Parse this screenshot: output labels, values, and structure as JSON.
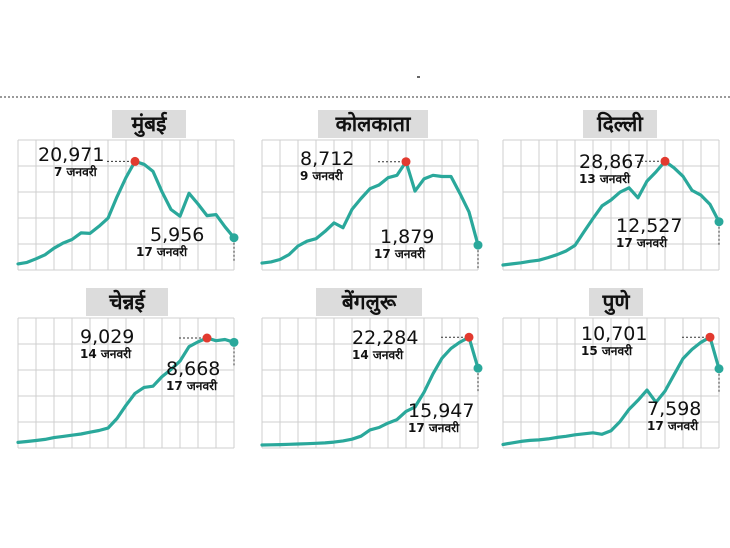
{
  "colors": {
    "line": "#2aa89b",
    "peak_marker": "#e23a2f",
    "end_marker": "#2aa89b",
    "grid": "#cfcfcf",
    "title_bg": "#dcdcdc"
  },
  "chart_data": [
    {
      "type": "line",
      "title": "मुंबई",
      "ylim": [
        0,
        24000
      ],
      "values": [
        800,
        1100,
        1800,
        2600,
        3900,
        4900,
        5600,
        6900,
        6800,
        8200,
        9800,
        14000,
        17800,
        20971,
        20400,
        19000,
        15000,
        11500,
        10200,
        14700,
        12600,
        10300,
        10500,
        8100,
        5956
      ],
      "peak": {
        "value": "20,971",
        "date": "7 जनवरी"
      },
      "last": {
        "value": "5,956",
        "date": "17 जनवरी"
      }
    },
    {
      "type": "line",
      "title": "कोलकाता",
      "ylim": [
        0,
        10000
      ],
      "values": [
        400,
        500,
        700,
        1100,
        1800,
        2200,
        2400,
        3000,
        3700,
        3300,
        4800,
        5700,
        6500,
        6800,
        7400,
        7600,
        8712,
        6300,
        7300,
        7600,
        7500,
        7500,
        6100,
        4600,
        1879
      ],
      "peak": {
        "value": "8,712",
        "date": "9 जनवरी"
      },
      "last": {
        "value": "1,879",
        "date": "17 जनवरी"
      }
    },
    {
      "type": "line",
      "title": "दिल्ली",
      "ylim": [
        0,
        33000
      ],
      "values": [
        800,
        1100,
        1400,
        1800,
        2100,
        2800,
        3600,
        4600,
        6100,
        9800,
        13400,
        16800,
        18400,
        20500,
        21700,
        19000,
        23500,
        26000,
        28867,
        27100,
        24800,
        21000,
        19700,
        17200,
        12527
      ],
      "peak": {
        "value": "28,867",
        "date": "13 जनवरी"
      },
      "last": {
        "value": "12,527",
        "date": "17 जनवरी"
      }
    },
    {
      "type": "line",
      "title": "चेन्नई",
      "ylim": [
        0,
        10200
      ],
      "values": [
        300,
        380,
        460,
        550,
        700,
        800,
        900,
        1000,
        1150,
        1300,
        1500,
        2300,
        3400,
        4400,
        4900,
        5000,
        5800,
        6400,
        7100,
        8300,
        8700,
        9029,
        8800,
        8900,
        8668
      ],
      "peak": {
        "value": "9,029",
        "date": "14 जनवरी"
      },
      "last": {
        "value": "8,668",
        "date": "17 जनवरी"
      }
    },
    {
      "type": "line",
      "title": "बेंगलुरू",
      "ylim": [
        0,
        25000
      ],
      "values": [
        200,
        240,
        290,
        340,
        410,
        470,
        560,
        630,
        790,
        1050,
        1400,
        2000,
        3300,
        3800,
        4700,
        5400,
        7100,
        8000,
        11000,
        14800,
        18000,
        20000,
        21300,
        22284,
        15947
      ],
      "peak": {
        "value": "22,284",
        "date": "14 जनवरी"
      },
      "last": {
        "value": "15,947",
        "date": "17 जनवरी"
      }
    },
    {
      "type": "line",
      "title": "पुणे",
      "ylim": [
        0,
        12000
      ],
      "values": [
        150,
        300,
        450,
        550,
        600,
        700,
        850,
        950,
        1100,
        1200,
        1300,
        1150,
        1500,
        2400,
        3600,
        4500,
        5500,
        4300,
        5400,
        7000,
        8600,
        9500,
        10200,
        10701,
        7598
      ],
      "peak": {
        "value": "10,701",
        "date": "15 जनवरी"
      },
      "last": {
        "value": "7,598",
        "date": "17 जनवरी"
      }
    }
  ]
}
